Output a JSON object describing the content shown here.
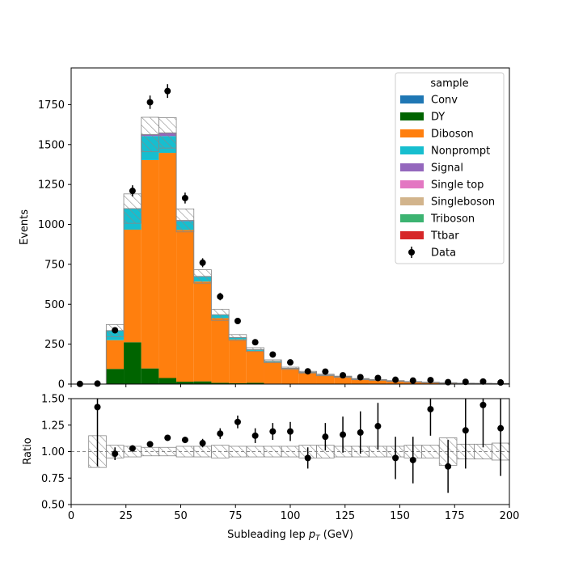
{
  "chart_data": {
    "type": "bar",
    "stacked": true,
    "bin_width": 8,
    "x_edges_start": 0,
    "xlabel_main": "Subleading lep ",
    "xlabel_math_main": "p",
    "xlabel_math_sub": "T",
    "xlabel_unit": " (GeV)",
    "ylabel": "Events",
    "ratio_ylabel": "Ratio",
    "xlim": [
      0,
      200
    ],
    "ylim": [
      0,
      1980
    ],
    "ratio_ylim": [
      0.5,
      1.5
    ],
    "x_ticks": [
      "0",
      "25",
      "50",
      "75",
      "100",
      "125",
      "150",
      "175",
      "200"
    ],
    "y_ticks": [
      "0",
      "250",
      "500",
      "750",
      "1000",
      "1250",
      "1500",
      "1750"
    ],
    "ratio_y_ticks": [
      "0.50",
      "0.75",
      "1.00",
      "1.25",
      "1.50"
    ],
    "legend_title": "sample",
    "legend_position": "top-right",
    "series": [
      {
        "name": "Conv",
        "color": "#1f77b4",
        "values": [
          0,
          0,
          0,
          0,
          0,
          0,
          0,
          0,
          0,
          0,
          0,
          0,
          0,
          0,
          0,
          0,
          0,
          0,
          0,
          0,
          0,
          0,
          0,
          0,
          0
        ]
      },
      {
        "name": "DY",
        "color": "#006400",
        "values": [
          0,
          0,
          95,
          262,
          98,
          38,
          15,
          17,
          8,
          5,
          8,
          3,
          1,
          0,
          0,
          0,
          0,
          0,
          0,
          0,
          0,
          0,
          0,
          0,
          0
        ]
      },
      {
        "name": "Diboson",
        "color": "#ff7f0e",
        "values": [
          0,
          0,
          180,
          705,
          1305,
          1410,
          950,
          625,
          405,
          275,
          200,
          135,
          95,
          72,
          55,
          45,
          30,
          25,
          18,
          14,
          10,
          7,
          5,
          4,
          3
        ]
      },
      {
        "name": "Nonprompt",
        "color": "#17becf",
        "values": [
          0,
          0,
          60,
          130,
          150,
          105,
          55,
          30,
          20,
          12,
          8,
          5,
          3,
          2,
          2,
          1,
          1,
          1,
          1,
          0,
          0,
          0,
          0,
          0,
          0
        ]
      },
      {
        "name": "Signal",
        "color": "#9467bd",
        "values": [
          0,
          0,
          0,
          2,
          10,
          20,
          5,
          2,
          1,
          0,
          0,
          0,
          0,
          0,
          0,
          0,
          0,
          0,
          0,
          0,
          0,
          0,
          0,
          0,
          0
        ]
      },
      {
        "name": "Single top",
        "color": "#e377c2",
        "values": [
          0,
          0,
          0,
          0,
          0,
          0,
          0,
          0,
          0,
          0,
          0,
          0,
          0,
          0,
          0,
          0,
          0,
          0,
          0,
          0,
          0,
          0,
          0,
          0,
          0
        ]
      },
      {
        "name": "Singleboson",
        "color": "#d2b48c",
        "values": [
          0,
          0,
          0,
          0,
          0,
          0,
          0,
          0,
          0,
          0,
          0,
          0,
          0,
          0,
          0,
          0,
          0,
          0,
          0,
          0,
          0,
          0,
          0,
          0,
          0
        ]
      },
      {
        "name": "Triboson",
        "color": "#3cb371",
        "values": [
          0,
          0,
          0,
          0,
          0,
          0,
          0,
          0,
          0,
          0,
          0,
          0,
          0,
          0,
          0,
          0,
          0,
          0,
          0,
          0,
          0,
          0,
          0,
          0,
          0
        ]
      },
      {
        "name": "Ttbar",
        "color": "#d62728",
        "values": [
          0,
          0,
          0,
          0,
          0,
          0,
          0,
          0,
          0,
          0,
          0,
          0,
          0,
          0,
          0,
          0,
          0,
          0,
          0,
          0,
          0,
          0,
          0,
          0,
          0
        ]
      }
    ],
    "uncertainty_up": [
      0,
      0,
      38,
      92,
      108,
      95,
      72,
      42,
      35,
      18,
      12,
      9,
      7,
      6,
      5,
      4,
      4,
      3,
      3,
      2,
      2,
      2,
      1,
      1,
      1
    ],
    "data": {
      "name": "Data",
      "x": [
        4,
        12,
        20,
        28,
        36,
        44,
        52,
        60,
        68,
        76,
        84,
        92,
        100,
        108,
        116,
        124,
        132,
        140,
        148,
        156,
        164,
        172,
        180,
        188,
        196
      ],
      "y": [
        1,
        3,
        337,
        1210,
        1765,
        1835,
        1165,
        760,
        548,
        395,
        262,
        185,
        136,
        80,
        78,
        55,
        43,
        38,
        27,
        22,
        25,
        12,
        14,
        16,
        10
      ],
      "yerr": [
        1,
        2,
        18,
        35,
        42,
        43,
        34,
        28,
        23,
        20,
        16,
        14,
        12,
        9,
        9,
        7,
        7,
        6,
        5,
        5,
        5,
        4,
        4,
        4,
        3
      ]
    },
    "ratio": {
      "x": [
        12,
        20,
        28,
        36,
        44,
        52,
        60,
        68,
        76,
        84,
        92,
        100,
        108,
        116,
        124,
        132,
        140,
        148,
        156,
        164,
        172,
        180,
        188,
        196
      ],
      "y": [
        1.42,
        0.98,
        1.03,
        1.07,
        1.13,
        1.11,
        1.08,
        1.17,
        1.28,
        1.15,
        1.19,
        1.19,
        0.94,
        1.14,
        1.16,
        1.18,
        1.24,
        0.94,
        0.92,
        1.4,
        0.86,
        1.2,
        1.44,
        1.22
      ],
      "yerr": [
        0.56,
        0.06,
        0.03,
        0.025,
        0.025,
        0.03,
        0.04,
        0.05,
        0.06,
        0.07,
        0.08,
        0.09,
        0.1,
        0.13,
        0.17,
        0.2,
        0.22,
        0.2,
        0.22,
        0.25,
        0.25,
        0.36,
        0.4,
        0.45
      ],
      "band_half": [
        0,
        0.15,
        0.06,
        0.05,
        0.04,
        0.04,
        0.05,
        0.05,
        0.06,
        0.05,
        0.05,
        0.05,
        0.05,
        0.06,
        0.06,
        0.05,
        0.05,
        0.05,
        0.05,
        0.06,
        0.06,
        0.13,
        0.07,
        0.07,
        0.08
      ]
    }
  }
}
